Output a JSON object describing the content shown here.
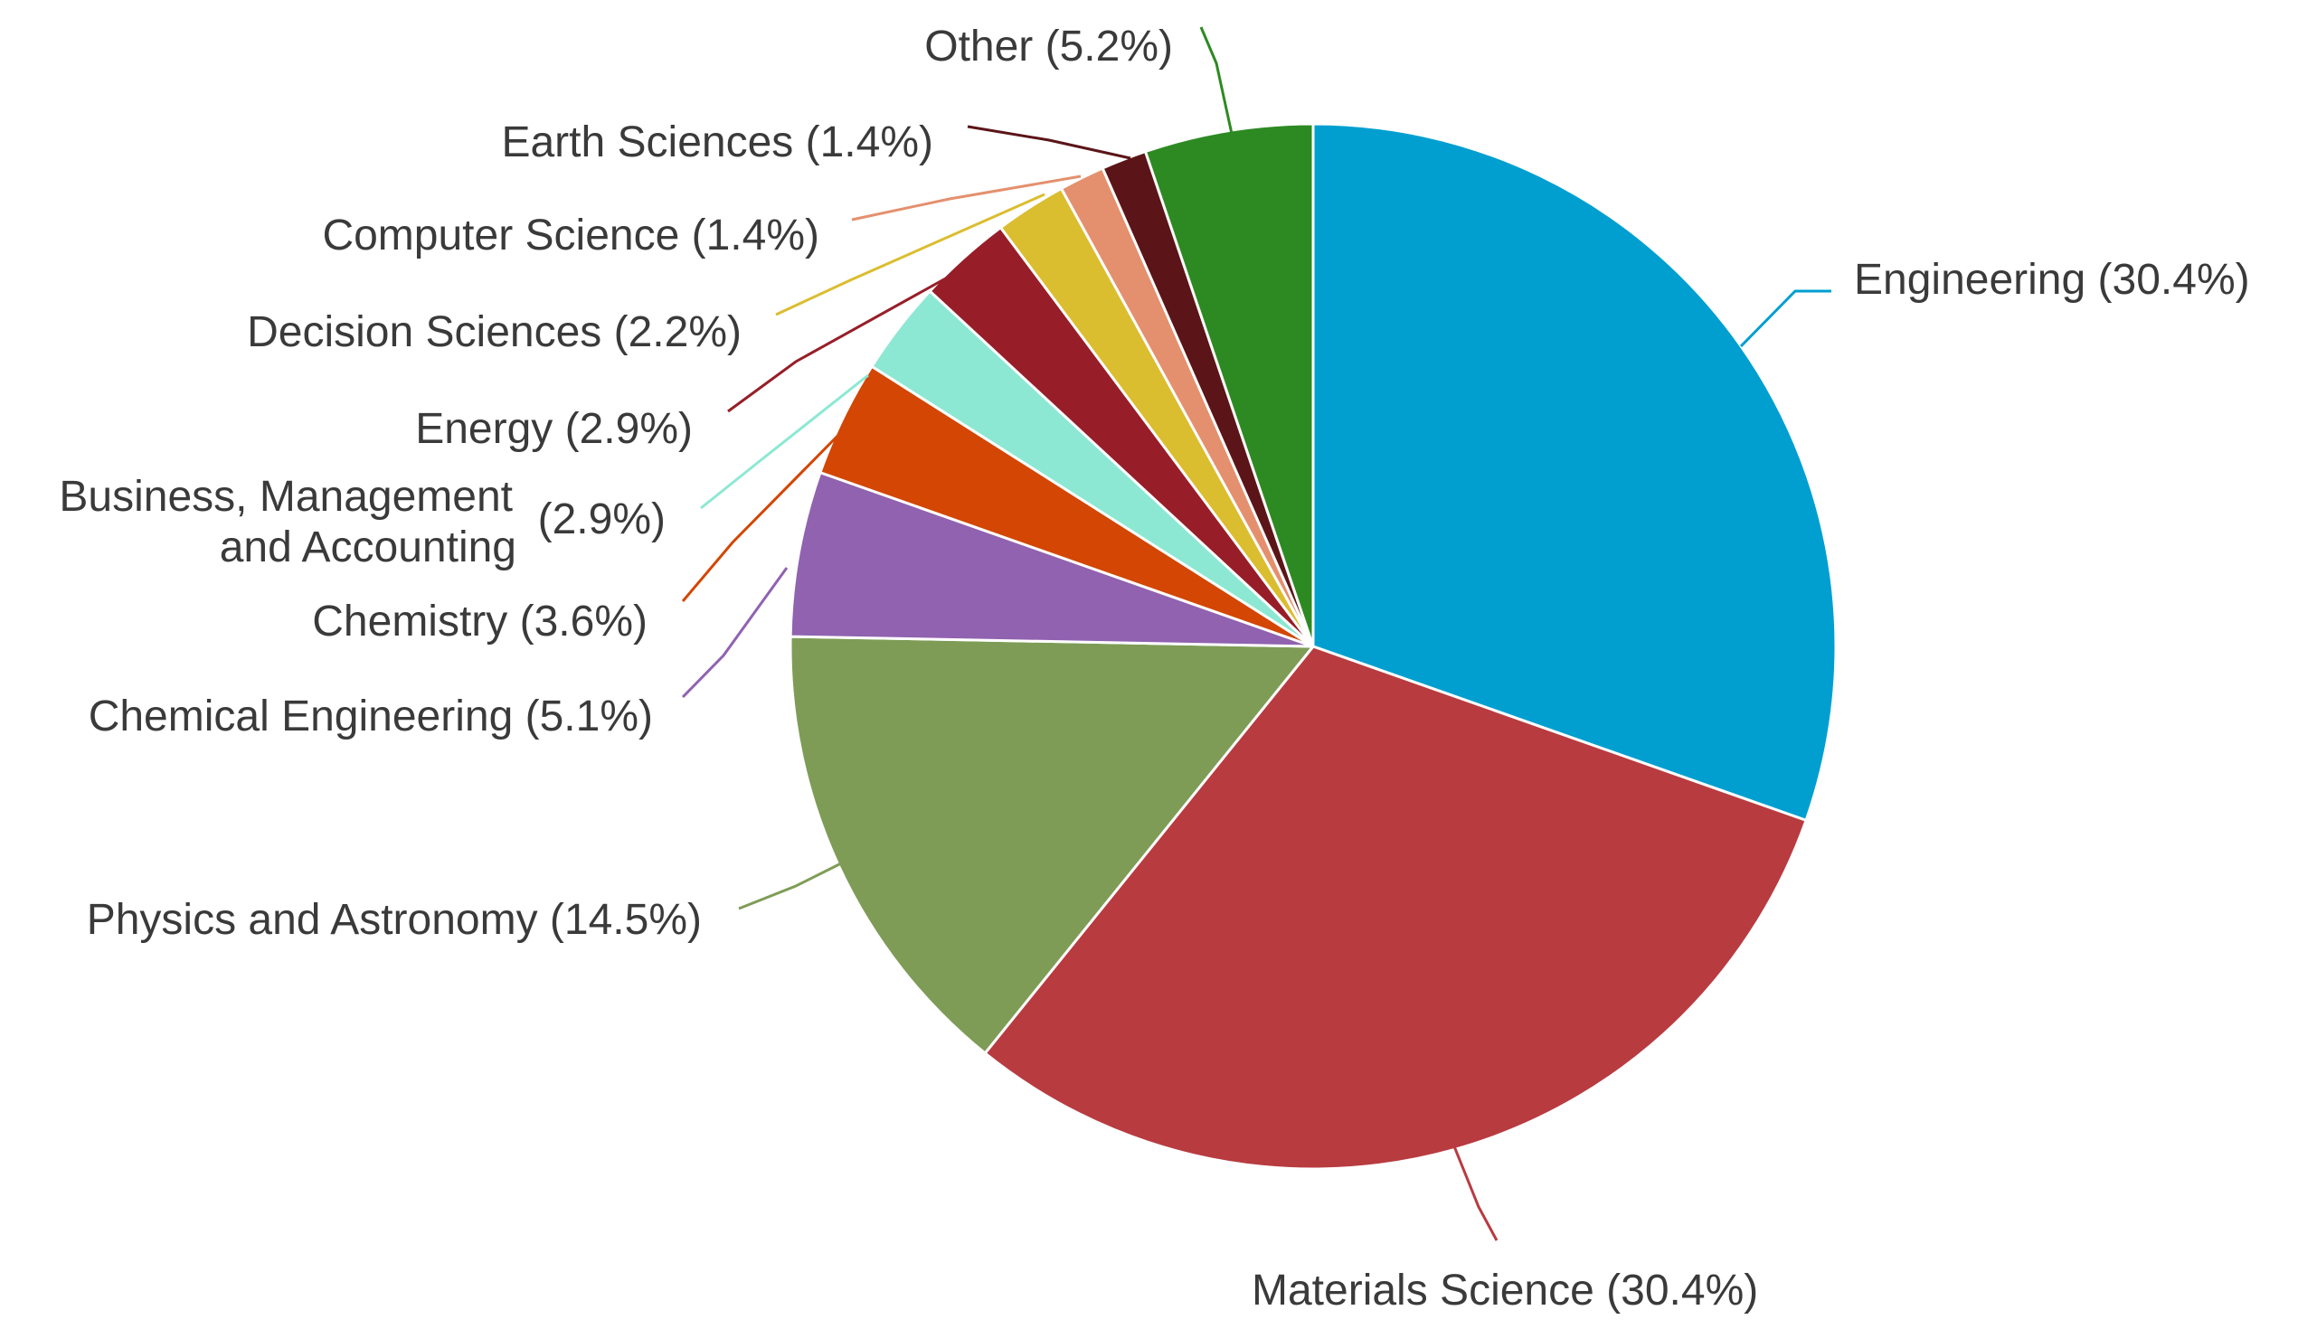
{
  "chart_data": {
    "type": "pie",
    "title": "",
    "start_angle_deg": 0,
    "direction": "clockwise",
    "slices": [
      {
        "name": "Engineering",
        "value": 30.4,
        "label": "Engineering (30.4%)",
        "color": "#009fd0"
      },
      {
        "name": "Materials Science",
        "value": 30.4,
        "label": "Materials Science (30.4%)",
        "color": "#b83b40"
      },
      {
        "name": "Physics and Astronomy",
        "value": 14.5,
        "label": "Physics and Astronomy (14.5%)",
        "color": "#7e9c56"
      },
      {
        "name": "Chemical Engineering",
        "value": 5.1,
        "label": "Chemical Engineering (5.1%)",
        "color": "#9062b0"
      },
      {
        "name": "Chemistry",
        "value": 3.6,
        "label": "Chemistry (3.6%)",
        "color": "#d34603"
      },
      {
        "name": "Business, Management and Accounting",
        "value": 2.9,
        "label_lines": [
          "Business, Management",
          "and Accounting"
        ],
        "label_value": "(2.9%)",
        "color": "#8de8d3"
      },
      {
        "name": "Energy",
        "value": 2.9,
        "label": "Energy (2.9%)",
        "color": "#971e28"
      },
      {
        "name": "Decision Sciences",
        "value": 2.2,
        "label": "Decision Sciences (2.2%)",
        "color": "#dbbd30"
      },
      {
        "name": "Computer Science",
        "value": 1.4,
        "label": "Computer Science (1.4%)",
        "color": "#e4906e"
      },
      {
        "name": "Earth Sciences",
        "value": 1.4,
        "label": "Earth Sciences (1.4%)",
        "color": "#5b1518"
      },
      {
        "name": "Other",
        "value": 5.2,
        "label": "Other (5.2%)",
        "color": "#2d8a22"
      }
    ]
  }
}
